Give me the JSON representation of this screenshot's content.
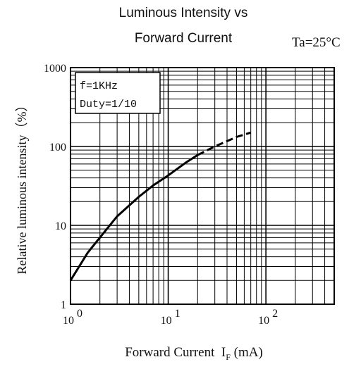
{
  "chart_data": {
    "type": "line",
    "title_line1": "Luminous Intensity vs",
    "title_line2": "Forward Current",
    "condition": "Ta=25°C",
    "xlabel": "Forward Current",
    "xlabel_symbol": "I",
    "xlabel_sub": "F",
    "xlabel_unit": "(mA)",
    "ylabel": "Relative luminous intensity（%）",
    "x_scale": "log",
    "y_scale": "log",
    "xlim": [
      1,
      500
    ],
    "ylim": [
      1,
      1000
    ],
    "x_ticks": [
      {
        "value": 1,
        "base": "10",
        "exp": "0"
      },
      {
        "value": 10,
        "base": "10",
        "exp": "1"
      },
      {
        "value": 100,
        "base": "10",
        "exp": "2"
      }
    ],
    "y_ticks": [
      {
        "value": 1,
        "label": "1"
      },
      {
        "value": 10,
        "label": "10"
      },
      {
        "value": 100,
        "label": "100"
      },
      {
        "value": 1000,
        "label": "1000"
      }
    ],
    "legend": [
      "f=1KHz",
      "Duty=1/10"
    ],
    "grid": true,
    "series": [
      {
        "style": "solid",
        "x": [
          1,
          1.5,
          2,
          3,
          5,
          7,
          10,
          15,
          20
        ],
        "y": [
          2,
          4.5,
          7,
          13,
          23,
          32,
          43,
          62,
          78
        ]
      },
      {
        "style": "dashed",
        "x": [
          20,
          30,
          50,
          70
        ],
        "y": [
          78,
          100,
          132,
          150
        ]
      }
    ]
  }
}
